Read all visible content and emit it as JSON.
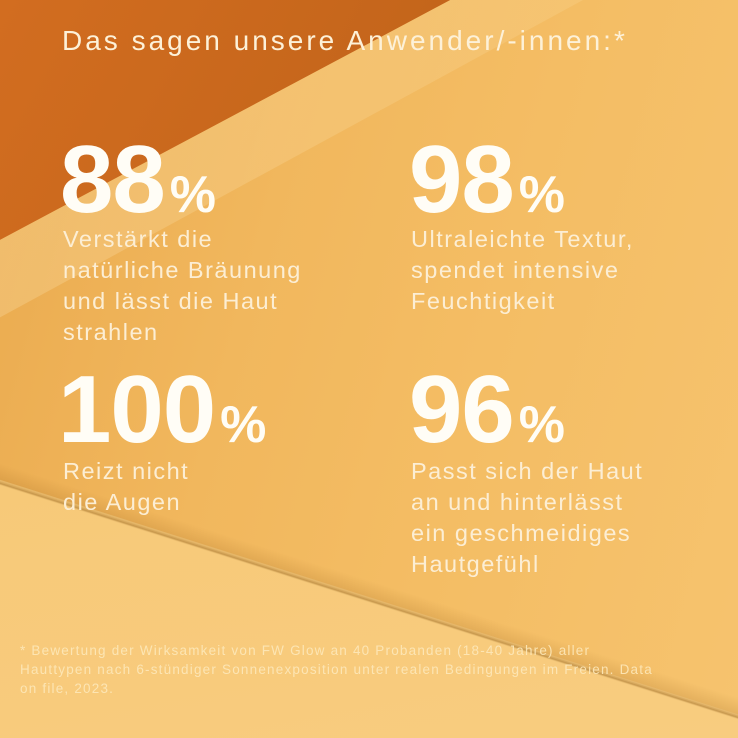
{
  "title": "Das sagen unsere Anwender/-innen:*",
  "stats": [
    {
      "value": "88",
      "unit": "%",
      "lines": [
        "Verstärkt die",
        "natürliche Bräunung",
        "und lässt die Haut",
        "strahlen"
      ]
    },
    {
      "value": "98",
      "unit": "%",
      "lines": [
        "Ultraleichte Textur,",
        "spendet intensive",
        "Feuchtigkeit"
      ]
    },
    {
      "value": "100",
      "unit": "%",
      "lines": [
        "Reizt nicht",
        "die Augen"
      ]
    },
    {
      "value": "96",
      "unit": "%",
      "lines": [
        "Passt sich der Haut",
        "an und hinterlässt",
        "ein geschmeidiges",
        "Hautgefühl"
      ]
    }
  ],
  "footnote_lines": [
    "* Bewertung der Wirksamkeit von FW Glow an 40 Probanden (18-40 Jahre) aller",
    "Hauttypen nach 6-stündiger Sonnenexposition unter realen Bedingungen im Freien. Data",
    "on file, 2023."
  ],
  "colors": {
    "bg_gold": "#f4bd64",
    "bg_gold_dark": "#eaaa4e",
    "bg_gold_mid": "#f1b75d",
    "bg_gold_light": "#f6c36e",
    "tri_bright": "#d26d20",
    "tri_dark": "#93520f",
    "fold_line": "rgba(146,95,26,0.5)",
    "text_cream": "#fdf1d8",
    "text_white": "#fffdf6",
    "text_soft": "#fceed4",
    "text_footnote": "rgba(253,231,183,0.92)"
  }
}
